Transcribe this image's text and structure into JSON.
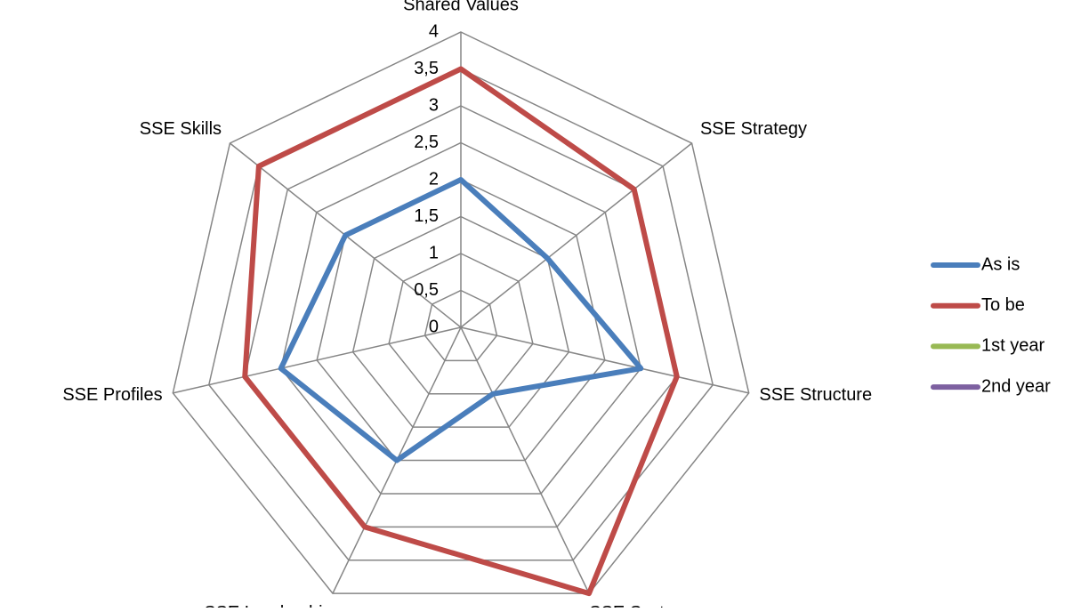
{
  "chart_data": {
    "type": "radar",
    "categories": [
      "Shared Values",
      "SSE Strategy",
      "SSE Structure",
      "SSE Systems",
      "SSE Leadership",
      "SSE Profiles",
      "SSE Skills"
    ],
    "series": [
      {
        "name": "As is",
        "color": "#4a7ebb",
        "values": [
          2,
          1.5,
          2.5,
          1,
          2,
          2.5,
          2
        ]
      },
      {
        "name": "To be",
        "color": "#be4b48",
        "values": [
          3.5,
          3,
          3,
          4,
          3,
          3,
          3.5
        ]
      },
      {
        "name": "1st year",
        "color": "#98b954",
        "values": [
          null,
          null,
          null,
          null,
          null,
          null,
          null
        ]
      },
      {
        "name": "2nd year",
        "color": "#7d60a0",
        "values": [
          null,
          null,
          null,
          null,
          null,
          null,
          null
        ]
      }
    ],
    "ylim": [
      0,
      4
    ],
    "yticks": [
      0,
      {
        "value": 0.5,
        "label": "0,5"
      },
      1,
      {
        "value": 1.5,
        "label": "1,5"
      },
      2,
      {
        "value": 2.5,
        "label": "2,5"
      },
      3,
      {
        "value": 3.5,
        "label": "3,5"
      },
      4
    ],
    "grid": true,
    "legend": "right"
  }
}
